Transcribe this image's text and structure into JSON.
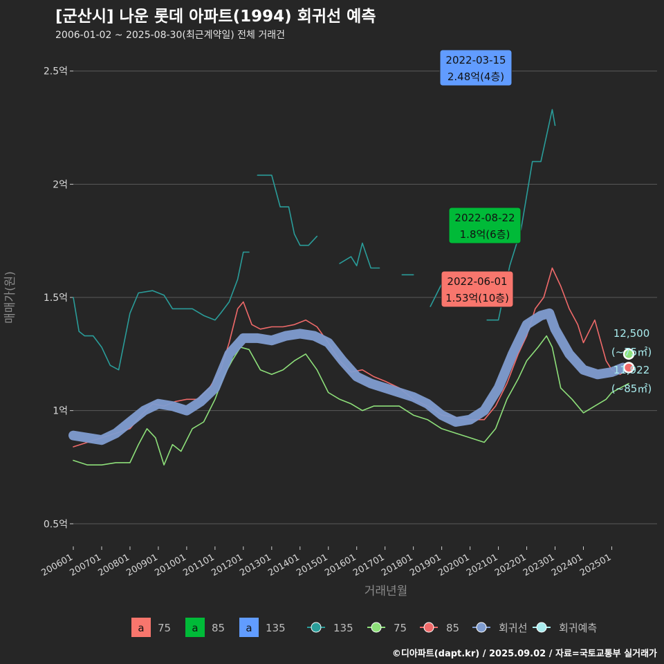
{
  "title": "[군산시] 나운 롯데 아파트(1994) 회귀선 예측",
  "subtitle": "2006-01-02 ~ 2025-08-30(최근계약일) 전체 거래건",
  "caption": "©디아파트(dapt.kr) / 2025.09.02 / 자료=국토교통부 실거래가",
  "colors": {
    "background": "#262626",
    "grid": "#5a5a5a",
    "s75": "#8ee07a",
    "s85": "#f06a6a",
    "s135": "#2a9d9a",
    "regression": "#7f9cd0",
    "forecast": "#a9ecee",
    "label75": "#f8766d",
    "label85": "#00ba38",
    "label135": "#619cff"
  },
  "chart_data": {
    "type": "line",
    "xlabel": "거래년월",
    "ylabel": "매매가(원)",
    "xlim": [
      2006.0,
      2026.6
    ],
    "ylim": [
      0.4,
      2.6
    ],
    "x_ticks": [
      "200601",
      "200701",
      "200801",
      "200901",
      "201001",
      "201101",
      "201201",
      "201301",
      "201401",
      "201501",
      "201601",
      "201701",
      "201801",
      "201901",
      "202001",
      "202101",
      "202201",
      "202301",
      "202401",
      "202501"
    ],
    "y_ticks": [
      {
        "value": 0.5,
        "label": "0.5억"
      },
      {
        "value": 1.0,
        "label": "1억"
      },
      {
        "value": 1.5,
        "label": "1.5억"
      },
      {
        "value": 2.0,
        "label": "2억"
      },
      {
        "value": 2.5,
        "label": "2.5억"
      }
    ],
    "series": [
      {
        "name": "75",
        "key": "s75",
        "x": [
          2006.0,
          2006.5,
          2007.0,
          2007.5,
          2008.0,
          2008.3,
          2008.6,
          2008.9,
          2009.2,
          2009.5,
          2009.8,
          2010.2,
          2010.6,
          2011.0,
          2011.3,
          2011.6,
          2011.9,
          2012.2,
          2012.6,
          2013.0,
          2013.4,
          2013.8,
          2014.2,
          2014.6,
          2015.0,
          2015.4,
          2015.8,
          2016.2,
          2016.6,
          2017.0,
          2017.5,
          2018.0,
          2018.5,
          2019.0,
          2019.5,
          2020.0,
          2020.5,
          2020.9,
          2021.3,
          2021.7,
          2022.0,
          2022.4,
          2022.7,
          2022.9,
          2023.2,
          2023.6,
          2024.0,
          2024.4,
          2024.8,
          2025.0,
          2025.3,
          2025.6
        ],
        "values": [
          0.78,
          0.76,
          0.76,
          0.77,
          0.77,
          0.85,
          0.92,
          0.88,
          0.76,
          0.85,
          0.82,
          0.92,
          0.95,
          1.05,
          1.15,
          1.22,
          1.28,
          1.27,
          1.18,
          1.16,
          1.18,
          1.22,
          1.25,
          1.18,
          1.08,
          1.05,
          1.03,
          1.0,
          1.02,
          1.02,
          1.02,
          0.98,
          0.96,
          0.92,
          0.9,
          0.88,
          0.86,
          0.92,
          1.05,
          1.14,
          1.22,
          1.28,
          1.33,
          1.28,
          1.1,
          1.05,
          0.99,
          1.02,
          1.05,
          1.08,
          1.1,
          1.12
        ]
      },
      {
        "name": "85",
        "key": "s85",
        "x": [
          2006.0,
          2006.5,
          2007.0,
          2007.5,
          2008.0,
          2008.4,
          2008.8,
          2009.2,
          2009.6,
          2010.0,
          2010.4,
          2010.8,
          2011.2,
          2011.5,
          2011.8,
          2012.0,
          2012.3,
          2012.6,
          2013.0,
          2013.4,
          2013.8,
          2014.2,
          2014.6,
          2015.0,
          2015.4,
          2015.8,
          2016.2,
          2016.6,
          2017.0,
          2017.5,
          2018.0,
          2018.5,
          2019.0,
          2019.5,
          2020.0,
          2020.5,
          2020.9,
          2021.3,
          2021.7,
          2022.0,
          2022.3,
          2022.6,
          2022.9,
          2023.2,
          2023.5,
          2023.8,
          2024.0,
          2024.4,
          2024.8,
          2025.0,
          2025.3,
          2025.5
        ],
        "values": [
          0.84,
          0.86,
          0.88,
          0.9,
          0.92,
          0.98,
          1.03,
          1.02,
          1.04,
          1.05,
          1.05,
          1.1,
          1.18,
          1.3,
          1.45,
          1.48,
          1.38,
          1.36,
          1.37,
          1.37,
          1.38,
          1.4,
          1.37,
          1.3,
          1.22,
          1.17,
          1.18,
          1.15,
          1.13,
          1.1,
          1.05,
          1.02,
          0.98,
          0.97,
          0.96,
          0.96,
          1.02,
          1.12,
          1.25,
          1.33,
          1.45,
          1.5,
          1.63,
          1.55,
          1.45,
          1.38,
          1.3,
          1.4,
          1.22,
          1.18,
          1.16,
          1.18
        ]
      },
      {
        "name": "135",
        "key": "s135",
        "x": [
          2006.0,
          2006.2,
          2006.4,
          2006.7,
          2007.0,
          2007.3,
          2007.6,
          2008.0,
          2008.3,
          2008.8,
          2009.2,
          2009.5,
          2009.8,
          2010.2,
          2010.6,
          2011.0,
          2011.2,
          2011.5,
          2011.8,
          2012.0,
          2012.2
        ],
        "values": [
          1.5,
          1.35,
          1.33,
          1.33,
          1.28,
          1.2,
          1.18,
          1.43,
          1.52,
          1.53,
          1.51,
          1.45,
          1.45,
          1.45,
          1.42,
          1.4,
          1.43,
          1.48,
          1.58,
          1.7,
          1.7
        ]
      },
      {
        "name": "135",
        "key": "s135",
        "x": [
          2012.5,
          2013.0,
          2013.3,
          2013.6,
          2013.8,
          2014.0,
          2014.3,
          2014.6
        ],
        "values": [
          2.04,
          2.04,
          1.9,
          1.9,
          1.78,
          1.73,
          1.73,
          1.77
        ]
      },
      {
        "name": "135",
        "key": "s135",
        "x": [
          2015.4,
          2015.8,
          2016.0,
          2016.2,
          2016.5,
          2016.8
        ],
        "values": [
          1.65,
          1.68,
          1.64,
          1.74,
          1.63,
          1.63
        ]
      },
      {
        "name": "135",
        "key": "s135",
        "x": [
          2017.6,
          2018.0
        ],
        "values": [
          1.6,
          1.6
        ]
      },
      {
        "name": "135",
        "key": "s135",
        "x": [
          2018.6,
          2019.0,
          2019.3
        ],
        "values": [
          1.46,
          1.56,
          1.6
        ]
      },
      {
        "name": "135",
        "key": "s135",
        "x": [
          2020.6,
          2021.0,
          2021.4,
          2021.8,
          2022.2,
          2022.5,
          2022.9,
          2023.0
        ],
        "values": [
          1.4,
          1.4,
          1.64,
          1.8,
          2.1,
          2.1,
          2.33,
          2.26
        ]
      },
      {
        "name": "회귀선",
        "key": "regression",
        "x": [
          2006.0,
          2006.5,
          2007.0,
          2007.5,
          2008.0,
          2008.5,
          2009.0,
          2009.5,
          2010.0,
          2010.5,
          2011.0,
          2011.5,
          2012.0,
          2012.5,
          2013.0,
          2013.5,
          2014.0,
          2014.5,
          2015.0,
          2015.5,
          2016.0,
          2016.5,
          2017.0,
          2017.5,
          2018.0,
          2018.5,
          2019.0,
          2019.5,
          2020.0,
          2020.5,
          2021.0,
          2021.5,
          2022.0,
          2022.5,
          2022.8,
          2023.0,
          2023.5,
          2024.0,
          2024.5,
          2025.0,
          2025.4
        ],
        "values": [
          0.89,
          0.88,
          0.87,
          0.9,
          0.95,
          1.0,
          1.03,
          1.02,
          1.0,
          1.04,
          1.1,
          1.25,
          1.32,
          1.32,
          1.31,
          1.33,
          1.34,
          1.33,
          1.3,
          1.22,
          1.15,
          1.12,
          1.1,
          1.08,
          1.06,
          1.03,
          0.98,
          0.95,
          0.96,
          1.0,
          1.1,
          1.25,
          1.38,
          1.42,
          1.43,
          1.36,
          1.25,
          1.18,
          1.16,
          1.17,
          1.19
        ]
      }
    ],
    "forecast_points": [
      {
        "x": 2025.6,
        "value": 1.25,
        "series": "75"
      },
      {
        "x": 2025.6,
        "value": 1.19,
        "series": "85"
      }
    ],
    "annotations": [
      {
        "date": "2022-03-15",
        "value_label": "2.48억(4층)",
        "series": "135",
        "x": 2022.2,
        "value": 2.48
      },
      {
        "date": "2022-08-22",
        "value_label": "1.8억(6층)",
        "series": "85",
        "x": 2022.6,
        "value": 1.8
      },
      {
        "date": "2022-06-01",
        "value_label": "1.53억(10층)",
        "series": "75",
        "x": 2022.4,
        "value": 1.53
      }
    ],
    "forecast_labels": [
      {
        "value_text": "12,500",
        "area_text": "(~75㎡)"
      },
      {
        "value_text": "11,922",
        "area_text": "(~85㎡)"
      }
    ],
    "legend": {
      "position": "bottom",
      "label_items": [
        {
          "glyph": "a",
          "text": "75",
          "color_key": "label75"
        },
        {
          "glyph": "a",
          "text": "85",
          "color_key": "label85"
        },
        {
          "glyph": "a",
          "text": "135",
          "color_key": "label135"
        }
      ],
      "line_items": [
        {
          "text": "135",
          "color_key": "s135"
        },
        {
          "text": "75",
          "color_key": "s75"
        },
        {
          "text": "85",
          "color_key": "s85"
        },
        {
          "text": "회귀선",
          "color_key": "regression"
        },
        {
          "text": "회귀예측",
          "color_key": "forecast"
        }
      ]
    }
  }
}
